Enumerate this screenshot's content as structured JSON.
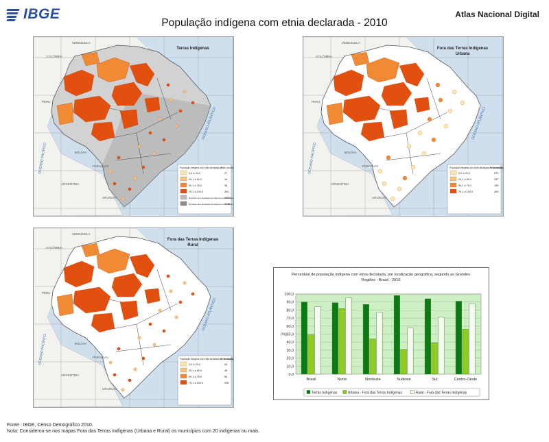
{
  "header": {
    "logo_text": "IBGE",
    "title": "População indígena com etnia declarada - 2010",
    "atlas": "Atlas Nacional Digital"
  },
  "maps": [
    {
      "title_lines": [
        "Terras Indígenas"
      ],
      "legend_heading": "População indígena com etnia declarada (%)",
      "legend_count_heading": "Nº de municípios",
      "legend_items": [
        {
          "label": "0,0 a 25,0",
          "count": "27",
          "color": "#fde7b0"
        },
        {
          "label": "25,1 a 50,0",
          "count": "16",
          "color": "#f9c27a"
        },
        {
          "label": "50,1 a 75,0",
          "count": "38",
          "color": "#f08a35"
        },
        {
          "label": "75,1 a 100,0",
          "count": "264",
          "color": "#e2500f"
        }
      ],
      "extra_items": [
        {
          "label": "Municípios sem declaração de indígenas na terra indígena",
          "count": "1500",
          "color": "#bdbdbd"
        },
        {
          "label": "Municípios sem declaração de indígenas ou com declaração",
          "count": "1145",
          "color": "#8a8a8a"
        }
      ]
    },
    {
      "title_lines": [
        "Fora das Terras Indígenas",
        "Urbana"
      ],
      "legend_heading": "População indígena com etnia declarada em municípios com 20 indígenas ou mais (%)",
      "legend_count_heading": "Nº de municípios",
      "legend_items": [
        {
          "label": "0,0 a 25,0",
          "count": "570",
          "color": "#fde7b0"
        },
        {
          "label": "25,1 a 50,0",
          "count": "437",
          "color": "#f9c27a"
        },
        {
          "label": "50,1 a 75,0",
          "count": "156",
          "color": "#f08a35"
        },
        {
          "label": "75,1 a 100,0",
          "count": "269",
          "color": "#e2500f"
        }
      ],
      "extra_items": []
    },
    {
      "title_lines": [
        "Fora das Terras Indígenas",
        "Rural"
      ],
      "legend_heading": "População indígena com etnia declarada em municípios com 20 indígenas ou mais (%)",
      "legend_count_heading": "Nº de municípios",
      "legend_items": [
        {
          "label": "0,0 a 25,0",
          "count": "65",
          "color": "#fde7b0"
        },
        {
          "label": "25,1 a 50,0",
          "count": "46",
          "color": "#f9c27a"
        },
        {
          "label": "50,1 a 75,0",
          "count": "53",
          "color": "#f08a35"
        },
        {
          "label": "75,1 a 100,0",
          "count": "208",
          "color": "#e2500f"
        }
      ],
      "extra_items": []
    }
  ],
  "map_labels": {
    "ocean_atlantic": "OCEANO ATLÂNTICO",
    "ocean_pacific": "OCEANO PACÍFICO",
    "countries": [
      "BOLÍVIA",
      "PARAGUAI",
      "ARGENTINA",
      "URUGUAI",
      "PERU",
      "COLÔMBIA",
      "VENEZUELA"
    ]
  },
  "chart_data": {
    "type": "bar",
    "title": "Percentual de população indígena com etnia declarada, por localização geográfica, segundo as Grandes Regiões - Brasil - 2010",
    "ylabel": "(%)",
    "ylim": [
      0,
      100
    ],
    "yticks": [
      "0,0",
      "10,0",
      "20,0",
      "30,0",
      "40,0",
      "50,0",
      "60,0",
      "70,0",
      "80,0",
      "90,0",
      "100,0"
    ],
    "categories": [
      "Brasil",
      "Norte",
      "Nordeste",
      "Sudeste",
      "Sul",
      "Centro-Oeste"
    ],
    "series": [
      {
        "name": "Terras Indígenas",
        "color": "#0c7a12",
        "values": [
          90,
          89,
          87,
          98,
          94,
          91
        ]
      },
      {
        "name": "Urbana - Fora das Terras Indígenas",
        "color": "#8fcc1e",
        "values": [
          49,
          82,
          44,
          31,
          39,
          56
        ]
      },
      {
        "name": "Rural - Fora das Terras Indígenas",
        "color": "#f6fbef",
        "values": [
          84,
          95,
          77,
          58,
          71,
          88
        ]
      }
    ],
    "plot_background": "#cdefc4",
    "grid": true,
    "legend_placement": "bottom"
  },
  "footer": {
    "source": "Fonte : IBGE, Censo Demográfico 2010.",
    "note": "Nota: Considerou-se nos mapas Fora das Terras Indígenas (Urbana e Rural) os municípios com 20 indígenas ou mais."
  }
}
